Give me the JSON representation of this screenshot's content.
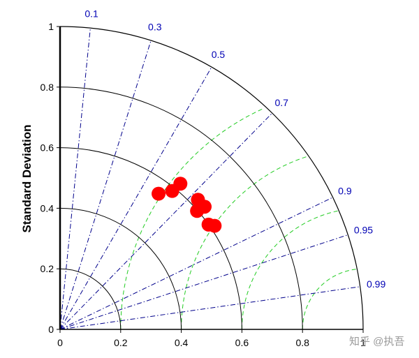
{
  "chart_data": {
    "type": "scatter",
    "subtype": "taylor-diagram",
    "title": "",
    "xlabel": "",
    "ylabel": "Standard Deviation",
    "xlim": [
      0,
      1
    ],
    "ylim": [
      0,
      1
    ],
    "x_ticks": [
      "0",
      "0.2",
      "0.4",
      "0.6",
      "0.8",
      "1"
    ],
    "y_ticks": [
      "0",
      "0.2",
      "0.4",
      "0.6",
      "0.8",
      "1"
    ],
    "std_arcs": [
      0.2,
      0.4,
      0.6,
      0.8,
      1.0
    ],
    "correlation_lines": [
      {
        "label": "0.1",
        "value": 0.1
      },
      {
        "label": "0.3",
        "value": 0.3
      },
      {
        "label": "0.5",
        "value": 0.5
      },
      {
        "label": "0.7",
        "value": 0.7
      },
      {
        "label": "0.9",
        "value": 0.9
      },
      {
        "label": "0.95",
        "value": 0.95
      },
      {
        "label": "0.99",
        "value": 0.99
      }
    ],
    "rms_arcs": [
      0.2,
      0.4,
      0.6,
      0.8
    ],
    "rms_reference": 1.0,
    "points": [
      {
        "x": 0.325,
        "y": 0.448
      },
      {
        "x": 0.37,
        "y": 0.457
      },
      {
        "x": 0.397,
        "y": 0.481
      },
      {
        "x": 0.455,
        "y": 0.428
      },
      {
        "x": 0.477,
        "y": 0.405
      },
      {
        "x": 0.452,
        "y": 0.391
      },
      {
        "x": 0.49,
        "y": 0.346
      },
      {
        "x": 0.51,
        "y": 0.342
      }
    ],
    "colors": {
      "points": "#ff0000",
      "correlation_lines": "#00008b",
      "correlation_labels": "#0000b4",
      "rms_arcs": "#22cc22",
      "std_arcs": "#000000"
    }
  },
  "watermark": "知乎 @执吾"
}
